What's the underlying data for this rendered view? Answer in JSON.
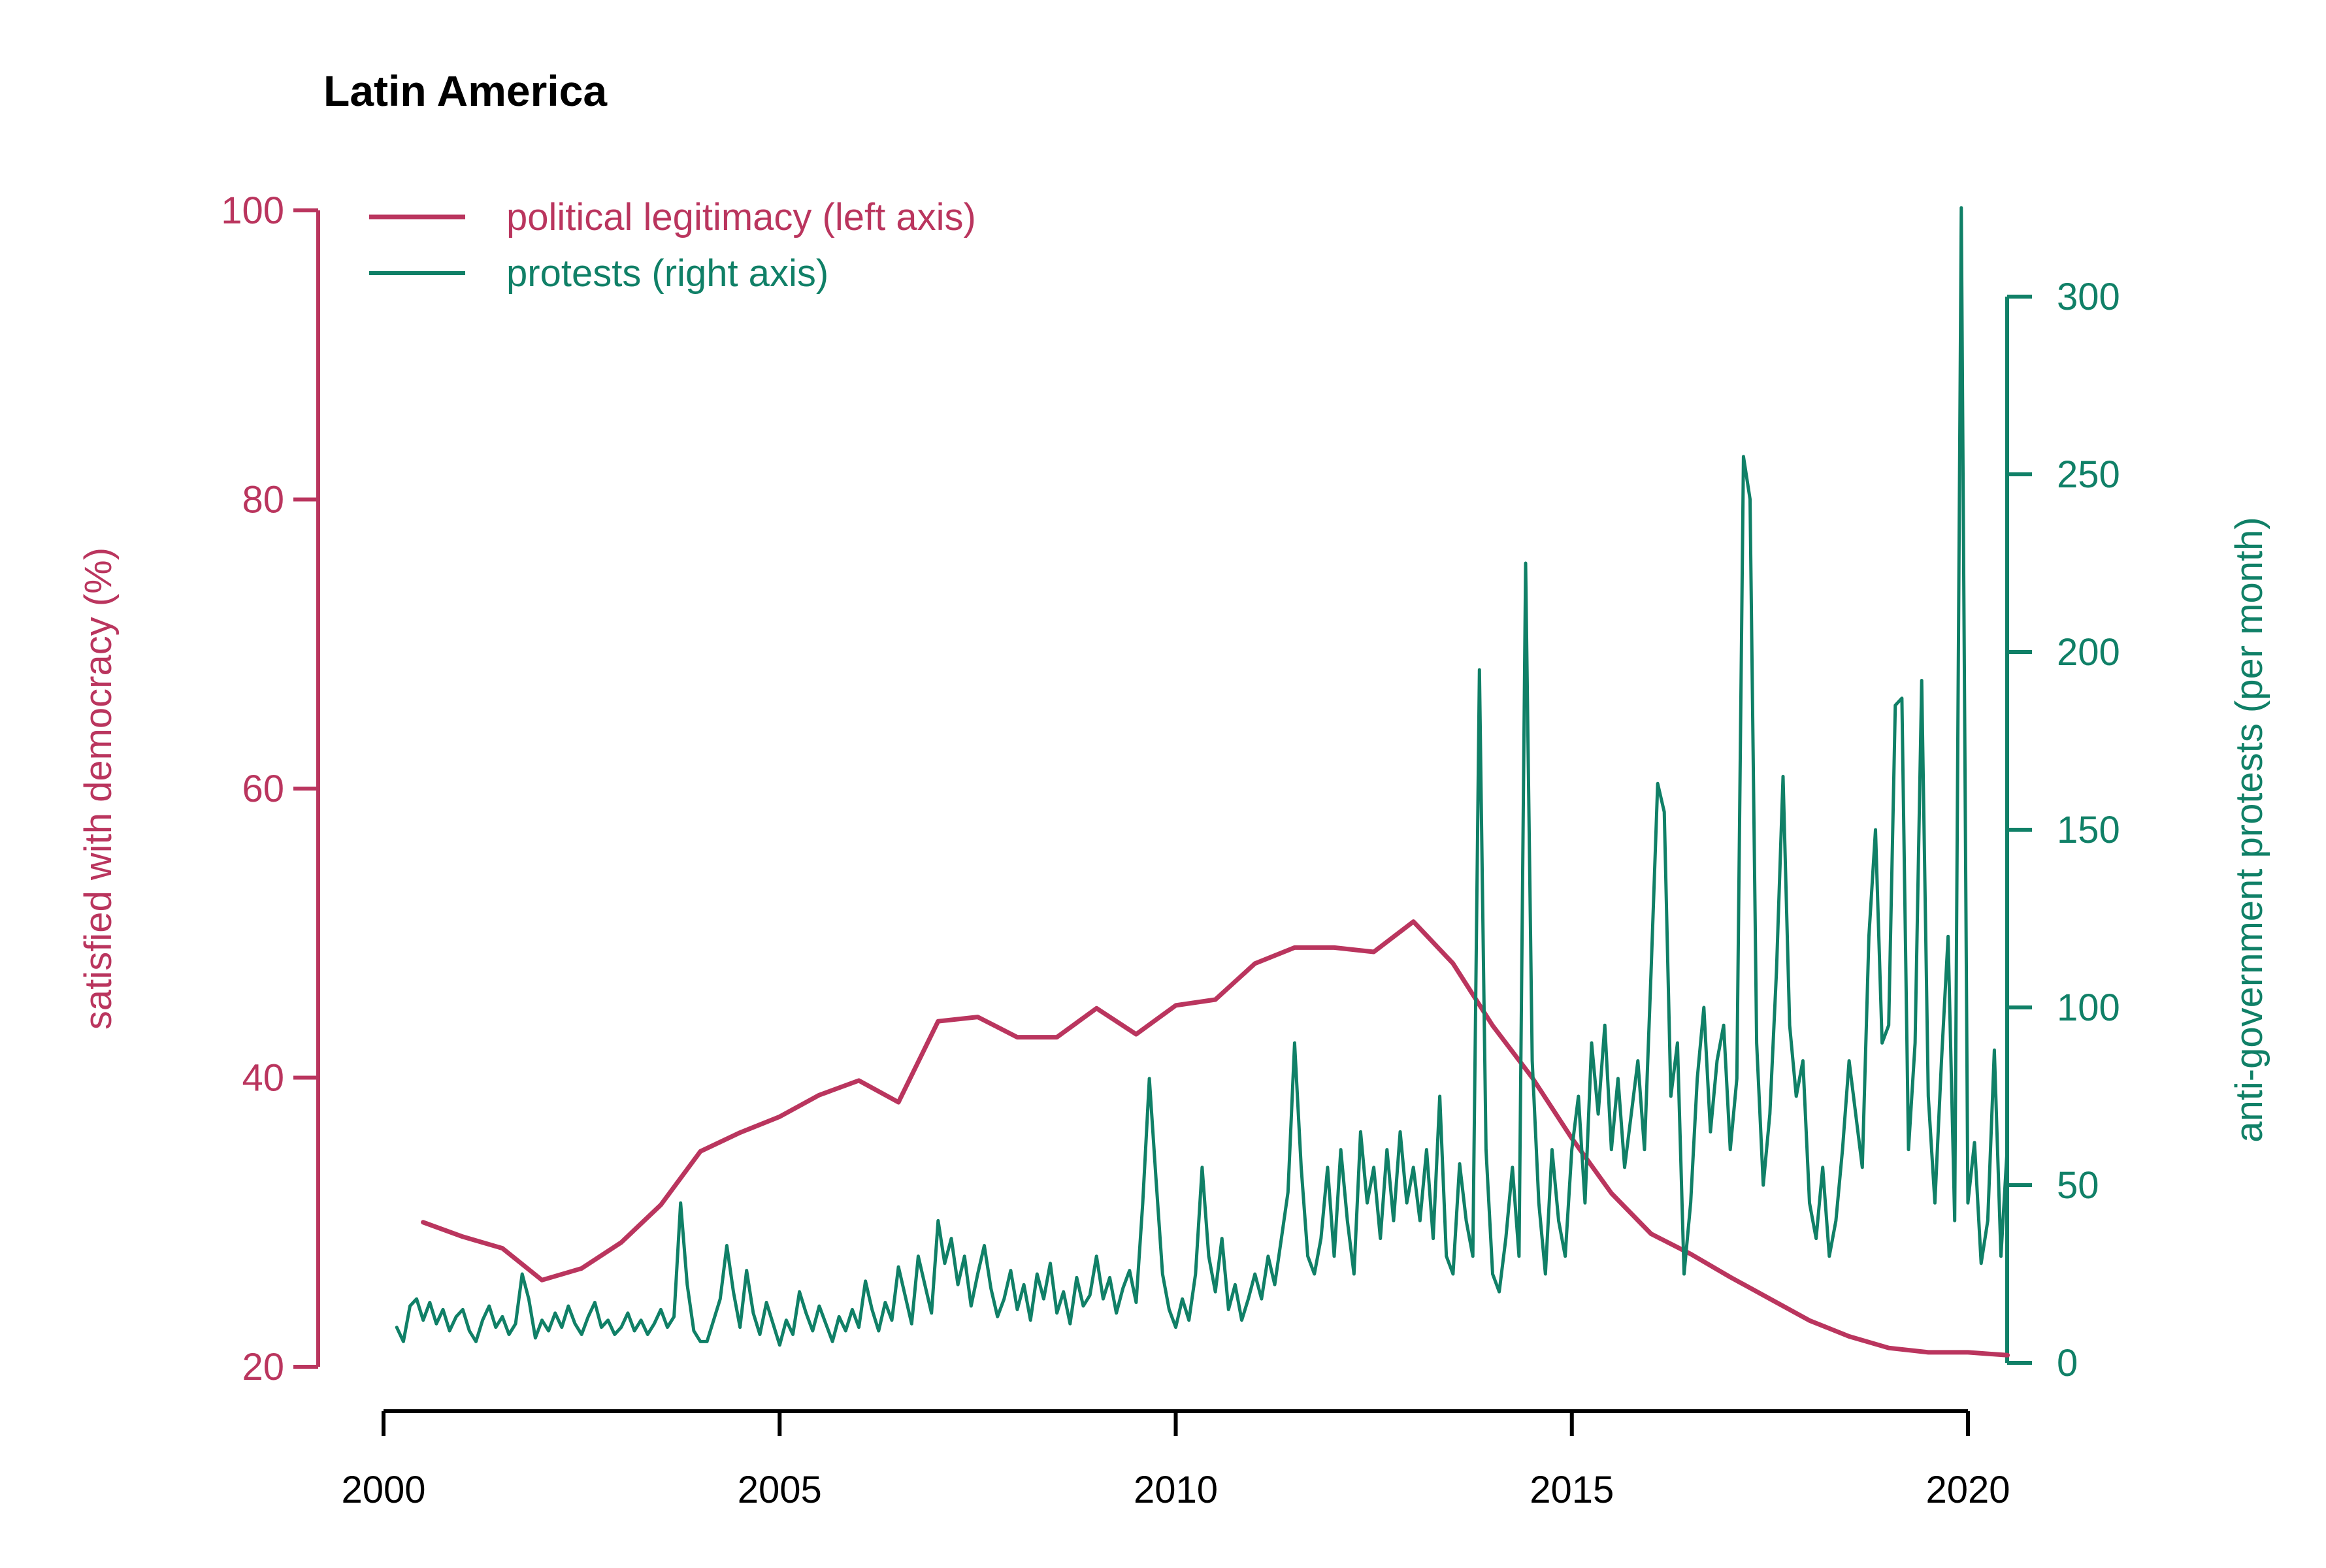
{
  "title": "Latin America",
  "colors": {
    "legitimacy": "#ba355e",
    "protests": "#108067",
    "axis": "#000000",
    "background": "#ffffff"
  },
  "legend": {
    "entries": [
      {
        "label": "political legitimacy (left axis)",
        "series": "legitimacy"
      },
      {
        "label": "protests (right axis)",
        "series": "protests"
      }
    ]
  },
  "chart_data": {
    "type": "line",
    "title": "Latin America",
    "grid": false,
    "legend_position": "top-left-inside",
    "axes": {
      "x": {
        "label": "",
        "ticks": [
          2000,
          2005,
          2010,
          2015,
          2020
        ],
        "range": [
          1999.2,
          2021.2
        ]
      },
      "left": {
        "label": "satisfied with democracy (%)",
        "ticks": [
          20,
          40,
          60,
          80,
          100
        ],
        "range": [
          20,
          100
        ],
        "color": "#ba355e"
      },
      "right": {
        "label": "anti-government protests (per month)",
        "ticks": [
          0,
          50,
          100,
          150,
          200,
          250,
          300
        ],
        "range": [
          0,
          300
        ],
        "color": "#108067"
      }
    },
    "series": [
      {
        "name": "political legitimacy (left axis)",
        "axis": "left",
        "color": "#ba355e",
        "line_width": 7,
        "x_start": 2000.5,
        "x_step": 0.5,
        "values": [
          30.0,
          29.0,
          28.2,
          26.0,
          26.8,
          28.6,
          31.2,
          34.9,
          36.2,
          37.3,
          38.8,
          39.8,
          38.3,
          43.9,
          44.2,
          42.8,
          42.8,
          44.8,
          43.0,
          45.0,
          45.4,
          47.9,
          49.0,
          49.0,
          48.7,
          50.8,
          47.9,
          43.6,
          40.0,
          35.8,
          32.0,
          29.2,
          27.8,
          26.2,
          24.7,
          23.2,
          22.1,
          21.3,
          21.0,
          21.0,
          20.8
        ]
      },
      {
        "name": "protests (right axis)",
        "axis": "right",
        "color": "#108067",
        "line_width": 5,
        "x_start": 2000.167,
        "x_step": 0.08333,
        "values": [
          10,
          6,
          16,
          18,
          12,
          17,
          11,
          15,
          9,
          13,
          15,
          9,
          6,
          12,
          16,
          10,
          13,
          8,
          11,
          25,
          18,
          7,
          12,
          9,
          14,
          10,
          16,
          11,
          8,
          13,
          17,
          10,
          12,
          8,
          10,
          14,
          9,
          12,
          8,
          11,
          15,
          10,
          13,
          45,
          22,
          9,
          6,
          6,
          12,
          18,
          33,
          20,
          10,
          26,
          14,
          8,
          17,
          11,
          5,
          12,
          8,
          20,
          14,
          9,
          16,
          11,
          6,
          13,
          9,
          15,
          10,
          23,
          15,
          9,
          17,
          12,
          27,
          19,
          11,
          30,
          22,
          14,
          40,
          28,
          35,
          22,
          30,
          16,
          25,
          33,
          21,
          13,
          18,
          26,
          15,
          22,
          12,
          25,
          18,
          28,
          14,
          20,
          11,
          24,
          16,
          19,
          30,
          18,
          24,
          14,
          21,
          26,
          17,
          45,
          80,
          52,
          25,
          15,
          10,
          18,
          12,
          25,
          55,
          30,
          20,
          35,
          15,
          22,
          12,
          18,
          25,
          18,
          30,
          22,
          35,
          48,
          90,
          55,
          30,
          25,
          35,
          55,
          30,
          60,
          40,
          25,
          65,
          45,
          55,
          35,
          60,
          40,
          65,
          45,
          55,
          40,
          60,
          35,
          75,
          30,
          25,
          56,
          40,
          30,
          195,
          60,
          25,
          20,
          35,
          55,
          30,
          225,
          85,
          45,
          25,
          60,
          40,
          30,
          60,
          75,
          45,
          90,
          70,
          95,
          60,
          80,
          55,
          70,
          85,
          60,
          110,
          163,
          155,
          75,
          90,
          25,
          45,
          80,
          100,
          65,
          85,
          95,
          60,
          80,
          255,
          243,
          90,
          50,
          70,
          110,
          165,
          95,
          75,
          85,
          45,
          35,
          55,
          30,
          40,
          60,
          85,
          70,
          55,
          120,
          150,
          90,
          95,
          185,
          187,
          60,
          90,
          192,
          75,
          45,
          85,
          120,
          40,
          325,
          45,
          62,
          28,
          40,
          88,
          30,
          62
        ]
      }
    ]
  }
}
